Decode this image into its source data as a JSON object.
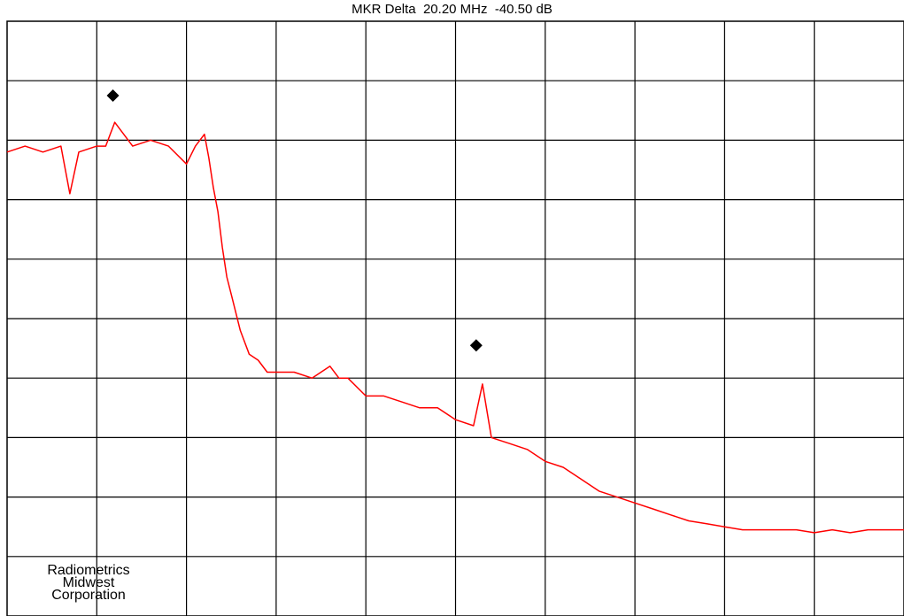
{
  "chart_data": {
    "type": "line",
    "title": "MKR Delta  20.20 MHz  -40.50 dB",
    "xlabel": "",
    "ylabel": "",
    "x_divisions": 10,
    "y_divisions": 10,
    "xlim": [
      0,
      10
    ],
    "ylim": [
      0,
      10
    ],
    "grid": true,
    "trace_color": "#ff0000",
    "series": [
      {
        "x": [
          0.0,
          0.2,
          0.4,
          0.6,
          0.7,
          0.8,
          1.0,
          1.1,
          1.2,
          1.4,
          1.6,
          1.8,
          2.0,
          2.1,
          2.2,
          2.25,
          2.3,
          2.35,
          2.4,
          2.45,
          2.5,
          2.6,
          2.7,
          2.8,
          2.9,
          3.0,
          3.2,
          3.4,
          3.6,
          3.7,
          3.8,
          4.0,
          4.2,
          4.4,
          4.6,
          4.8,
          5.0,
          5.2,
          5.3,
          5.4,
          5.6,
          5.8,
          6.0,
          6.2,
          6.4,
          6.6,
          6.8,
          7.0,
          7.2,
          7.4,
          7.6,
          7.8,
          8.0,
          8.2,
          8.4,
          8.6,
          8.8,
          9.0,
          9.2,
          9.4,
          9.6,
          9.8,
          10.0
        ],
        "values": [
          7.8,
          7.9,
          7.8,
          7.9,
          7.1,
          7.8,
          7.9,
          7.9,
          8.3,
          7.9,
          8.0,
          7.9,
          7.6,
          7.9,
          8.1,
          7.7,
          7.2,
          6.8,
          6.2,
          5.7,
          5.4,
          4.8,
          4.4,
          4.3,
          4.1,
          4.1,
          4.1,
          4.0,
          4.2,
          4.0,
          4.0,
          3.7,
          3.7,
          3.6,
          3.5,
          3.5,
          3.3,
          3.2,
          3.9,
          3.0,
          2.9,
          2.8,
          2.6,
          2.5,
          2.3,
          2.1,
          2.0,
          1.9,
          1.8,
          1.7,
          1.6,
          1.55,
          1.5,
          1.45,
          1.45,
          1.45,
          1.45,
          1.4,
          1.45,
          1.4,
          1.45,
          1.45,
          1.45
        ]
      }
    ],
    "markers": [
      {
        "x": 1.18,
        "y": 8.75
      },
      {
        "x": 5.23,
        "y": 4.55
      }
    ]
  },
  "watermark": {
    "line1": "Radiometrics",
    "line2": "Midwest",
    "line3": "Corporation"
  }
}
